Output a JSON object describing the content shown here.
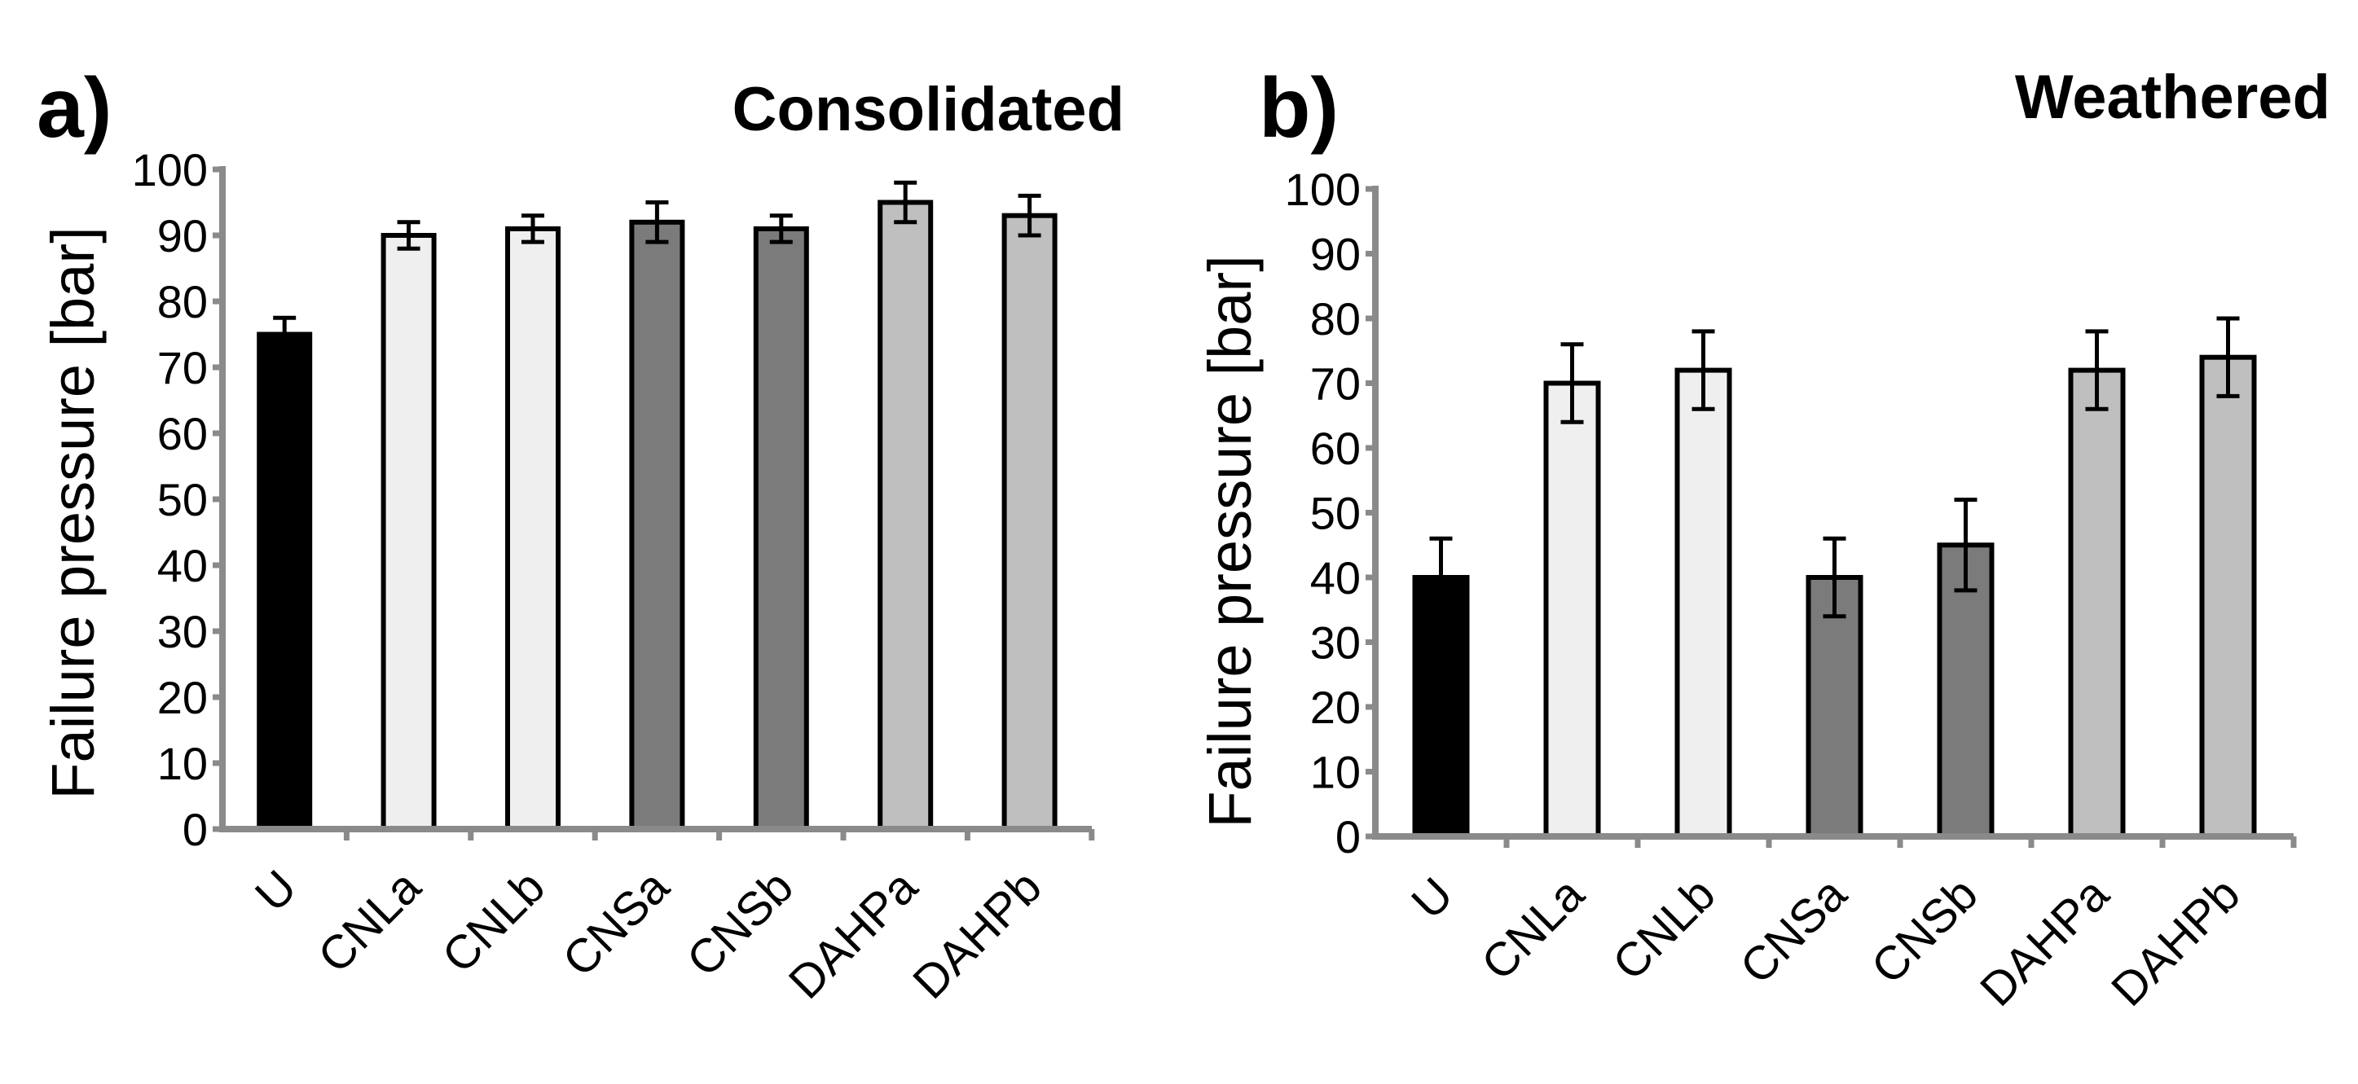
{
  "chart_data": [
    {
      "type": "bar",
      "panel_label": "a)",
      "title": "Consolidated",
      "xlabel": "",
      "ylabel": "Failure pressure [bar]",
      "ylim": [
        0,
        100
      ],
      "yticks": [
        "0",
        "10",
        "20",
        "30",
        "40",
        "50",
        "60",
        "70",
        "80",
        "90",
        "100"
      ],
      "categories": [
        "U",
        "CNLa",
        "CNLb",
        "CNSa",
        "CNSb",
        "DAHPa",
        "DAHPb"
      ],
      "values": [
        75,
        90,
        91,
        92,
        91,
        95,
        93
      ],
      "errors": [
        2.5,
        2,
        2,
        3,
        2,
        3,
        3
      ],
      "colors": [
        "#000000",
        "#efefef",
        "#efefef",
        "#7b7b7b",
        "#7b7b7b",
        "#bfbfbf",
        "#bfbfbf"
      ],
      "grid": false
    },
    {
      "type": "bar",
      "panel_label": "b)",
      "title": "Weathered",
      "xlabel": "",
      "ylabel": "Failure pressure [bar]",
      "ylim": [
        0,
        100
      ],
      "yticks": [
        "0",
        "10",
        "20",
        "30",
        "40",
        "50",
        "60",
        "70",
        "80",
        "90",
        "100"
      ],
      "categories": [
        "U",
        "CNLa",
        "CNLb",
        "CNSa",
        "CNSb",
        "DAHPa",
        "DAHPb"
      ],
      "values": [
        40,
        70,
        72,
        40,
        45,
        72,
        74
      ],
      "errors": [
        6,
        6,
        6,
        6,
        7,
        6,
        6
      ],
      "colors": [
        "#000000",
        "#efefef",
        "#efefef",
        "#7b7b7b",
        "#7b7b7b",
        "#bfbfbf",
        "#bfbfbf"
      ],
      "grid": false
    }
  ]
}
